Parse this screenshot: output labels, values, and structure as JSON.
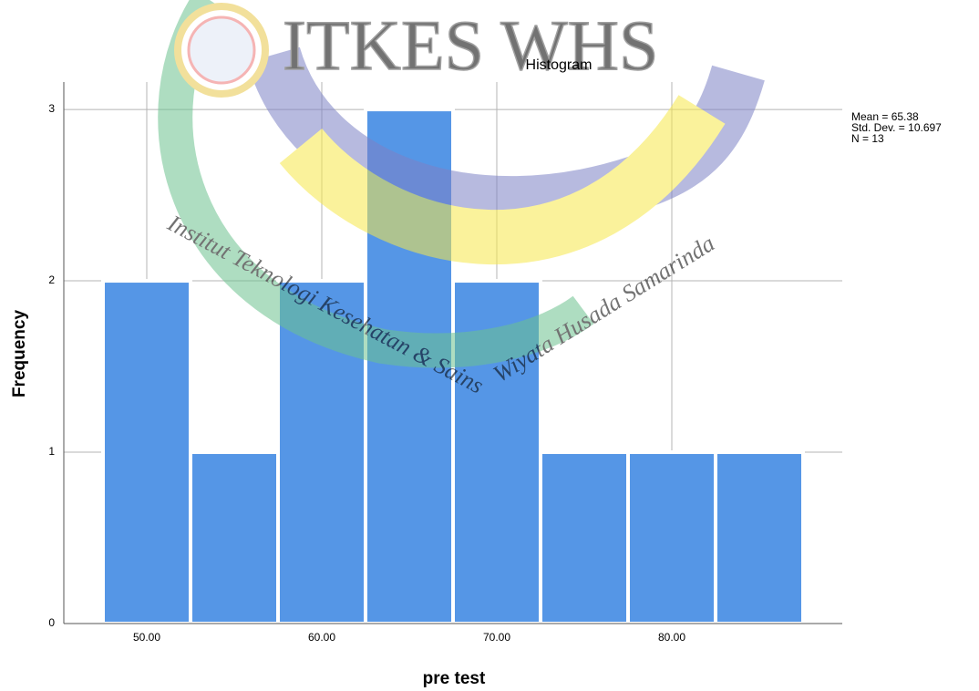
{
  "chart_data": {
    "type": "histogram",
    "title": "Histogram",
    "x_label": "pre test",
    "y_label": "Frequency",
    "bins": [
      47.5,
      52.5,
      57.5,
      62.5,
      67.5,
      72.5,
      77.5,
      82.5,
      87.5
    ],
    "values": [
      2,
      1,
      2,
      3,
      2,
      1,
      1,
      1
    ],
    "color": "#5596e6",
    "xlim": [
      45.26,
      89.74
    ],
    "xticks": [
      {
        "value": 50,
        "label": "50.00"
      },
      {
        "value": 60,
        "label": "60.00"
      },
      {
        "value": 70,
        "label": "70.00"
      },
      {
        "value": 80,
        "label": "80.00"
      }
    ],
    "ylim": [
      0,
      3.16
    ],
    "yticks": [
      0,
      1,
      2,
      3
    ],
    "grid": true,
    "annotations": [
      "Mean = 65.38",
      "Std. Dev. = 10.697",
      "N = 13"
    ]
  },
  "watermark": {
    "logo": "ITKES WHS",
    "caption_left": "Institut Teknologi Kesehatan & Sains",
    "caption_right": "Wiyata Husada Samarinda"
  }
}
